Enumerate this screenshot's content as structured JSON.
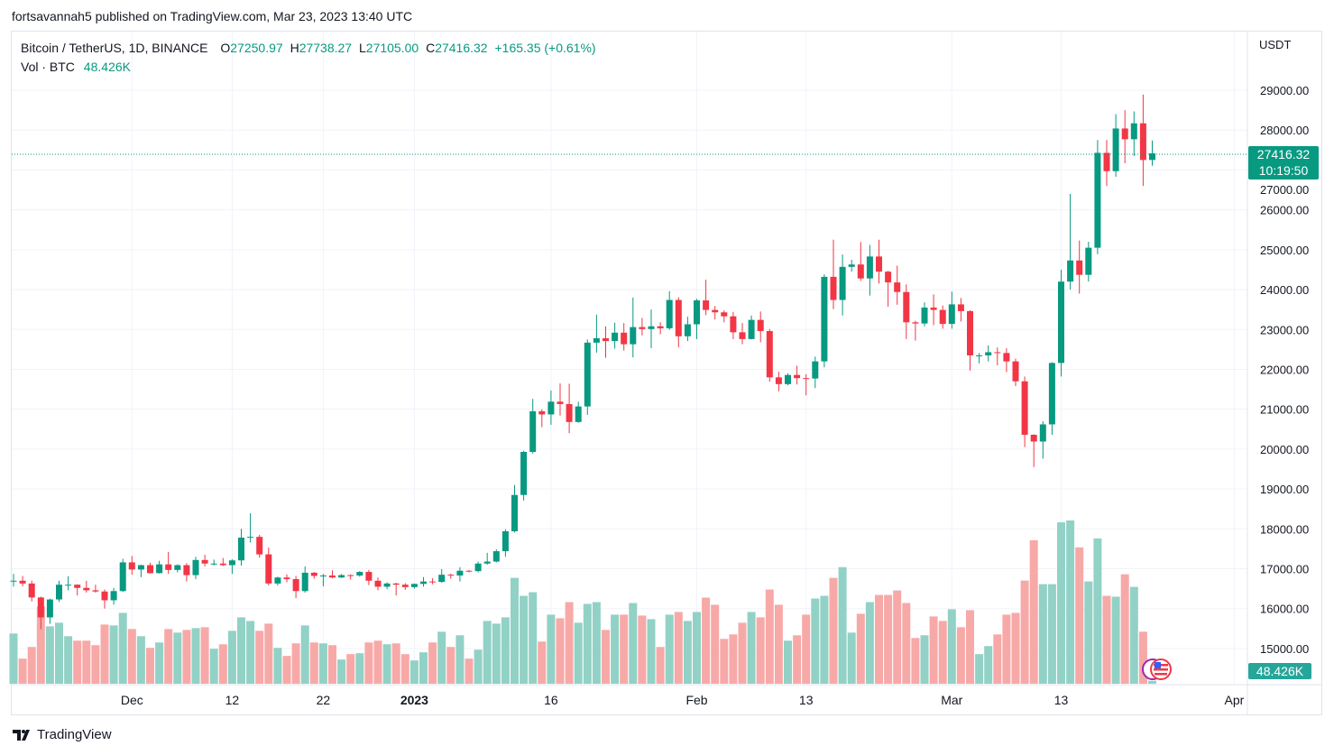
{
  "publish_line": "fortsavannah5 published on TradingView.com, Mar 23, 2023 13:40 UTC",
  "legend": {
    "symbol": "Bitcoin / TetherUS, 1D, BINANCE",
    "o_label": "O",
    "o": "27250.97",
    "h_label": "H",
    "h": "27738.27",
    "l_label": "L",
    "l": "27105.00",
    "c_label": "C",
    "c": "27416.32",
    "change": "+165.35 (+0.61%)",
    "vol_label": "Vol · BTC",
    "vol": "48.426K"
  },
  "price_axis": {
    "currency": "USDT",
    "last_price": "27416.32",
    "countdown": "10:19:50",
    "last_volume": "48.426K"
  },
  "logo_text": "TradingView",
  "colors": {
    "up": "#089981",
    "down": "#F23645",
    "vol_up": "#92d1c6",
    "vol_down": "#f7a9a7"
  },
  "chart_data": {
    "type": "candlestick",
    "title": "Bitcoin / TetherUS, 1D, BINANCE",
    "start_date": "2022-11-18",
    "end_date": "2023-03-23",
    "ylim": [
      14400,
      29700
    ],
    "y_ticks": [
      "29000.00",
      "28000.00",
      "27000.00",
      "26000.00",
      "25000.00",
      "24000.00",
      "23000.00",
      "22000.00",
      "21000.00",
      "20000.00",
      "19000.00",
      "18000.00",
      "17000.00",
      "16000.00",
      "15000.00"
    ],
    "x_ticks": [
      {
        "label": "Dec",
        "day_index": 13,
        "bold": false
      },
      {
        "label": "12",
        "day_index": 24,
        "bold": false
      },
      {
        "label": "22",
        "day_index": 34,
        "bold": false
      },
      {
        "label": "2023",
        "day_index": 44,
        "bold": true
      },
      {
        "label": "16",
        "day_index": 59,
        "bold": false
      },
      {
        "label": "Feb",
        "day_index": 75,
        "bold": false
      },
      {
        "label": "13",
        "day_index": 87,
        "bold": false
      },
      {
        "label": "Mar",
        "day_index": 103,
        "bold": false
      },
      {
        "label": "13",
        "day_index": 115,
        "bold": false
      },
      {
        "label": "Apr",
        "day_index": 134,
        "bold": false
      }
    ],
    "ohlc": [
      [
        16690,
        16870,
        16550,
        16700
      ],
      [
        16700,
        16820,
        16560,
        16630
      ],
      [
        16630,
        16700,
        16180,
        16280
      ],
      [
        16280,
        16300,
        15480,
        15780
      ],
      [
        15780,
        16250,
        15620,
        16230
      ],
      [
        16230,
        16700,
        16170,
        16600
      ],
      [
        16600,
        16810,
        16460,
        16600
      ],
      [
        16600,
        16610,
        16330,
        16520
      ],
      [
        16520,
        16700,
        16400,
        16460
      ],
      [
        16460,
        16600,
        16400,
        16430
      ],
      [
        16430,
        16480,
        16000,
        16210
      ],
      [
        16210,
        16520,
        16100,
        16440
      ],
      [
        16440,
        17250,
        16420,
        17160
      ],
      [
        17160,
        17320,
        16850,
        16980
      ],
      [
        16980,
        17100,
        16790,
        17090
      ],
      [
        17090,
        17150,
        16880,
        16890
      ],
      [
        16890,
        17200,
        16880,
        17110
      ],
      [
        17110,
        17420,
        16870,
        16970
      ],
      [
        16970,
        17110,
        16910,
        17090
      ],
      [
        17090,
        17140,
        16680,
        16840
      ],
      [
        16840,
        17300,
        16740,
        17220
      ],
      [
        17220,
        17350,
        17060,
        17130
      ],
      [
        17130,
        17230,
        17080,
        17130
      ],
      [
        17130,
        17270,
        17070,
        17090
      ],
      [
        17090,
        17240,
        16870,
        17210
      ],
      [
        17210,
        18000,
        17080,
        17780
      ],
      [
        17780,
        18390,
        17660,
        17800
      ],
      [
        17800,
        17850,
        17280,
        17360
      ],
      [
        17360,
        17530,
        16580,
        16630
      ],
      [
        16630,
        16800,
        16580,
        16780
      ],
      [
        16780,
        16860,
        16660,
        16740
      ],
      [
        16740,
        16820,
        16260,
        16440
      ],
      [
        16440,
        17060,
        16400,
        16900
      ],
      [
        16900,
        16920,
        16750,
        16820
      ],
      [
        16820,
        16870,
        16560,
        16830
      ],
      [
        16830,
        16960,
        16760,
        16780
      ],
      [
        16780,
        16870,
        16770,
        16840
      ],
      [
        16840,
        16860,
        16730,
        16830
      ],
      [
        16830,
        16940,
        16800,
        16920
      ],
      [
        16920,
        16970,
        16590,
        16700
      ],
      [
        16700,
        16780,
        16460,
        16550
      ],
      [
        16550,
        16660,
        16490,
        16630
      ],
      [
        16630,
        16650,
        16330,
        16600
      ],
      [
        16600,
        16640,
        16470,
        16540
      ],
      [
        16540,
        16630,
        16500,
        16620
      ],
      [
        16620,
        16790,
        16550,
        16680
      ],
      [
        16680,
        16760,
        16610,
        16670
      ],
      [
        16670,
        16990,
        16650,
        16850
      ],
      [
        16850,
        16880,
        16750,
        16830
      ],
      [
        16830,
        17040,
        16680,
        16950
      ],
      [
        16950,
        16970,
        16910,
        16940
      ],
      [
        16940,
        17180,
        16910,
        17130
      ],
      [
        17130,
        17400,
        17100,
        17180
      ],
      [
        17180,
        17490,
        17160,
        17440
      ],
      [
        17440,
        17990,
        17300,
        17940
      ],
      [
        17940,
        19100,
        17910,
        18850
      ],
      [
        18850,
        19960,
        18710,
        19930
      ],
      [
        19930,
        21260,
        19890,
        20950
      ],
      [
        20950,
        21000,
        20550,
        20870
      ],
      [
        20870,
        21470,
        20610,
        21190
      ],
      [
        21190,
        21650,
        20840,
        21130
      ],
      [
        21130,
        21640,
        20400,
        20680
      ],
      [
        20680,
        21190,
        20660,
        21070
      ],
      [
        21070,
        22750,
        20860,
        22670
      ],
      [
        22670,
        23370,
        22420,
        22780
      ],
      [
        22780,
        23080,
        22290,
        22710
      ],
      [
        22710,
        23170,
        22520,
        22920
      ],
      [
        22920,
        23160,
        22470,
        22630
      ],
      [
        22630,
        23800,
        22300,
        23060
      ],
      [
        23060,
        23290,
        22850,
        23010
      ],
      [
        23010,
        23500,
        22530,
        23080
      ],
      [
        23080,
        23180,
        22880,
        23030
      ],
      [
        23030,
        23960,
        22990,
        23740
      ],
      [
        23740,
        23810,
        22550,
        22830
      ],
      [
        22830,
        23320,
        22710,
        23130
      ],
      [
        23130,
        23770,
        22760,
        23730
      ],
      [
        23730,
        24250,
        23360,
        23490
      ],
      [
        23490,
        23590,
        23250,
        23430
      ],
      [
        23430,
        23480,
        23180,
        23330
      ],
      [
        23330,
        23440,
        22760,
        22930
      ],
      [
        22930,
        23160,
        22630,
        22760
      ],
      [
        22760,
        23350,
        22750,
        23240
      ],
      [
        23240,
        23450,
        22680,
        22960
      ],
      [
        22960,
        23010,
        21690,
        21800
      ],
      [
        21800,
        21940,
        21450,
        21630
      ],
      [
        21630,
        21900,
        21600,
        21860
      ],
      [
        21860,
        22090,
        21620,
        21780
      ],
      [
        21780,
        21880,
        21350,
        21770
      ],
      [
        21770,
        22320,
        21530,
        22200
      ],
      [
        22200,
        24380,
        22050,
        24320
      ],
      [
        24320,
        25250,
        23510,
        23740
      ],
      [
        23740,
        24880,
        23350,
        24570
      ],
      [
        24570,
        24750,
        24450,
        24630
      ],
      [
        24630,
        25190,
        24220,
        24280
      ],
      [
        24280,
        25120,
        23850,
        24830
      ],
      [
        24830,
        25250,
        24150,
        24450
      ],
      [
        24450,
        24470,
        23570,
        24180
      ],
      [
        24180,
        24600,
        23620,
        23940
      ],
      [
        23940,
        24130,
        22760,
        23180
      ],
      [
        23180,
        23220,
        22720,
        23150
      ],
      [
        23150,
        23680,
        23080,
        23550
      ],
      [
        23550,
        23880,
        23110,
        23490
      ],
      [
        23490,
        23600,
        23020,
        23140
      ],
      [
        23140,
        23950,
        23020,
        23630
      ],
      [
        23630,
        23790,
        23200,
        23460
      ],
      [
        23460,
        23480,
        21970,
        22350
      ],
      [
        22350,
        22410,
        22150,
        22350
      ],
      [
        22350,
        22600,
        22200,
        22430
      ],
      [
        22430,
        22550,
        22100,
        22410
      ],
      [
        22410,
        22530,
        21930,
        22200
      ],
      [
        22200,
        22270,
        21580,
        21700
      ],
      [
        21700,
        21820,
        20050,
        20360
      ],
      [
        20360,
        20370,
        19550,
        20190
      ],
      [
        20190,
        20700,
        19760,
        20620
      ],
      [
        20620,
        22180,
        20360,
        22160
      ],
      [
        22160,
        24500,
        21820,
        24200
      ],
      [
        24200,
        26400,
        24000,
        24730
      ],
      [
        24730,
        25230,
        23900,
        24370
      ],
      [
        24370,
        25200,
        24200,
        25050
      ],
      [
        25050,
        27750,
        24890,
        27430
      ],
      [
        27430,
        27750,
        26600,
        26970
      ],
      [
        26970,
        28400,
        26830,
        28040
      ],
      [
        28040,
        28500,
        27170,
        27770
      ],
      [
        27770,
        28470,
        27350,
        28170
      ],
      [
        28170,
        28890,
        26600,
        27250
      ],
      [
        27250.97,
        27738.27,
        27105.0,
        27416.32
      ]
    ],
    "volume_k": [
      840,
      420,
      615,
      1290,
      960,
      1020,
      795,
      720,
      720,
      645,
      990,
      975,
      1185,
      915,
      795,
      600,
      690,
      915,
      855,
      900,
      930,
      945,
      585,
      660,
      885,
      1110,
      1050,
      885,
      1005,
      600,
      465,
      675,
      975,
      690,
      675,
      645,
      405,
      495,
      510,
      690,
      720,
      660,
      675,
      495,
      390,
      525,
      690,
      870,
      615,
      810,
      420,
      570,
      1050,
      1005,
      1110,
      1770,
      1470,
      1530,
      705,
      1155,
      1095,
      1365,
      1020,
      1335,
      1365,
      900,
      1155,
      1155,
      1350,
      1140,
      1080,
      615,
      1155,
      1200,
      1050,
      1200,
      1440,
      1320,
      750,
      825,
      1020,
      1200,
      1110,
      1575,
      1320,
      720,
      810,
      1155,
      1425,
      1470,
      1770,
      1950,
      855,
      1170,
      1365,
      1485,
      1485,
      1560,
      1350,
      765,
      810,
      1125,
      1050,
      1245,
      945,
      1230,
      495,
      630,
      825,
      1155,
      1185,
      1725,
      2400,
      1665,
      1665,
      2700,
      2730,
      2280,
      1710,
      2430,
      1470,
      1455,
      1830,
      1620,
      870,
      48.426
    ],
    "volume_max_k": 2730
  }
}
